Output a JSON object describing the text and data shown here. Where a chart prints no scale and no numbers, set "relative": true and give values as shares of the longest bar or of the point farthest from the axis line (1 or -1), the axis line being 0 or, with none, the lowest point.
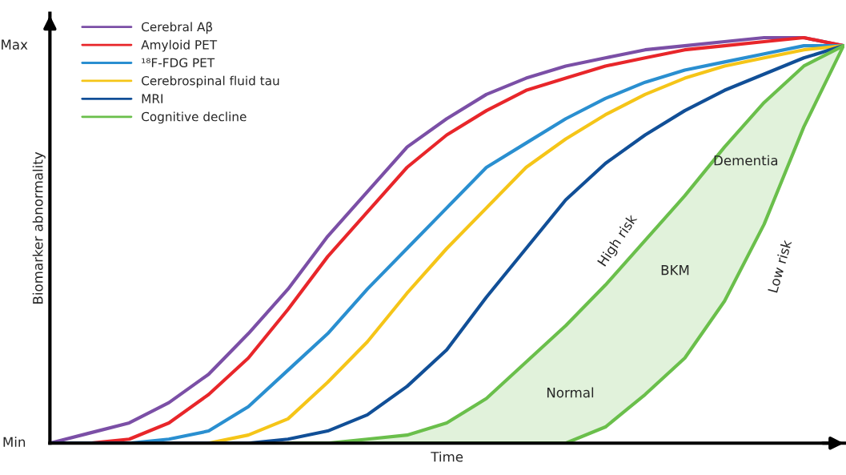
{
  "chart_data": {
    "type": "line",
    "relative": true,
    "xlabel": "Time",
    "ylabel": "Biomarker abnormality",
    "categories": [
      null,
      null,
      null,
      null,
      null,
      null,
      null,
      null,
      null,
      null,
      null,
      null,
      null,
      null,
      null,
      null,
      null,
      null,
      null,
      null,
      null
    ],
    "series": [
      {
        "name": "Cerebral Aβ",
        "color": "#7b4fa6",
        "values": [
          0,
          0.025,
          0.05,
          0.1,
          0.17,
          0.27,
          0.38,
          0.51,
          0.62,
          0.73,
          0.8,
          0.86,
          0.9,
          0.93,
          0.95,
          0.97,
          0.98,
          0.99,
          1.0,
          1.0,
          0.98
        ]
      },
      {
        "name": "Amyloid PET",
        "color": "#e8262a",
        "values": [
          0,
          0,
          0.01,
          0.05,
          0.12,
          0.21,
          0.33,
          0.46,
          0.57,
          0.68,
          0.76,
          0.82,
          0.87,
          0.9,
          0.93,
          0.95,
          0.97,
          0.98,
          0.99,
          1.0,
          0.98
        ]
      },
      {
        "name": "¹⁸F-FDG PET",
        "color": "#2a8fd0",
        "values": [
          0,
          0,
          0,
          0.01,
          0.03,
          0.09,
          0.18,
          0.27,
          0.38,
          0.48,
          0.58,
          0.68,
          0.74,
          0.8,
          0.85,
          0.89,
          0.92,
          0.94,
          0.96,
          0.98,
          0.98
        ]
      },
      {
        "name": "Cerebrospinal fluid tau",
        "color": "#f5c518",
        "values": [
          null,
          null,
          null,
          null,
          0,
          0.02,
          0.06,
          0.15,
          0.25,
          0.37,
          0.48,
          0.58,
          0.68,
          0.75,
          0.81,
          0.86,
          0.9,
          0.93,
          0.95,
          0.97,
          0.98
        ]
      },
      {
        "name": "MRI",
        "color": "#114f97",
        "values": [
          0,
          0,
          0,
          0,
          0,
          0,
          0.01,
          0.03,
          0.07,
          0.14,
          0.23,
          0.36,
          0.48,
          0.6,
          0.69,
          0.76,
          0.82,
          0.87,
          0.91,
          0.95,
          0.98
        ]
      },
      {
        "name": "Cognitive decline",
        "color": "#6abf4b",
        "values": [
          null,
          null,
          null,
          null,
          null,
          null,
          0,
          0,
          0.01,
          0.02,
          0.05,
          0.11,
          0.2,
          0.29,
          0.39,
          0.5,
          0.61,
          0.73,
          0.84,
          0.93,
          0.98
        ],
        "upper": [
          null,
          null,
          null,
          null,
          null,
          null,
          0,
          0,
          0.01,
          0.02,
          0.05,
          0.11,
          0.2,
          0.29,
          0.39,
          0.5,
          0.61,
          0.73,
          0.84,
          0.93,
          0.98
        ],
        "lower": [
          null,
          null,
          null,
          null,
          null,
          null,
          0,
          0,
          0,
          0,
          0,
          0,
          0,
          0,
          0.04,
          0.12,
          0.21,
          0.35,
          0.54,
          0.78,
          0.98
        ]
      }
    ],
    "annotations": [
      "Min",
      "Max",
      "Normal",
      "High risk",
      "BKM",
      "Low risk",
      "Dementia"
    ],
    "legend": "top left",
    "grid": false
  }
}
